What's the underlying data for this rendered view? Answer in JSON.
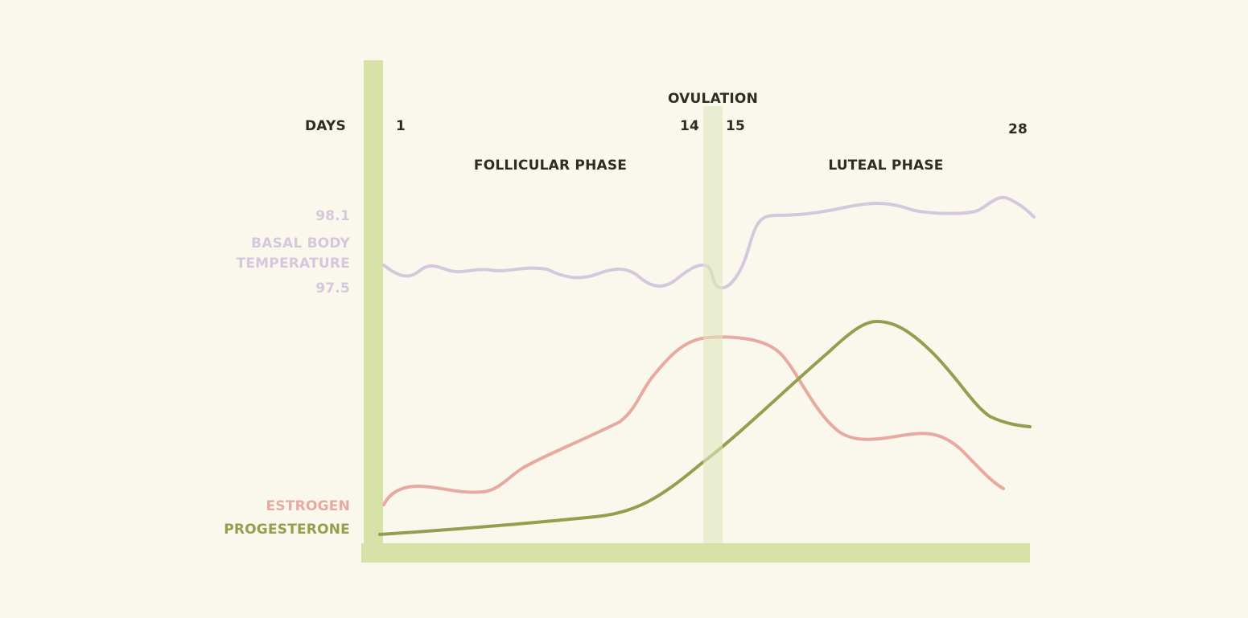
{
  "labels": {
    "days": "DAYS",
    "day_1": "1",
    "day_14": "14",
    "day_15": "15",
    "day_28": "28",
    "ovulation": "OVULATION",
    "follicular_phase": "FOLLICULAR PHASE",
    "luteal_phase": "LUTEAL PHASE",
    "temp_high": "98.1",
    "temp_title_line1": "BASAL BODY",
    "temp_title_line2": "TEMPERATURE",
    "temp_low": "97.5",
    "estrogen": "ESTROGEN",
    "progesterone": "PROGESTERONE"
  },
  "colors": {
    "background": "#faf8ec",
    "axis": "#d6e2a8",
    "ovulation_band": "#e6ecd0",
    "temperature": "#d6c8dc",
    "estrogen": "#e8a9a0",
    "progesterone": "#939f4e",
    "text": "#2f2b26"
  }
}
